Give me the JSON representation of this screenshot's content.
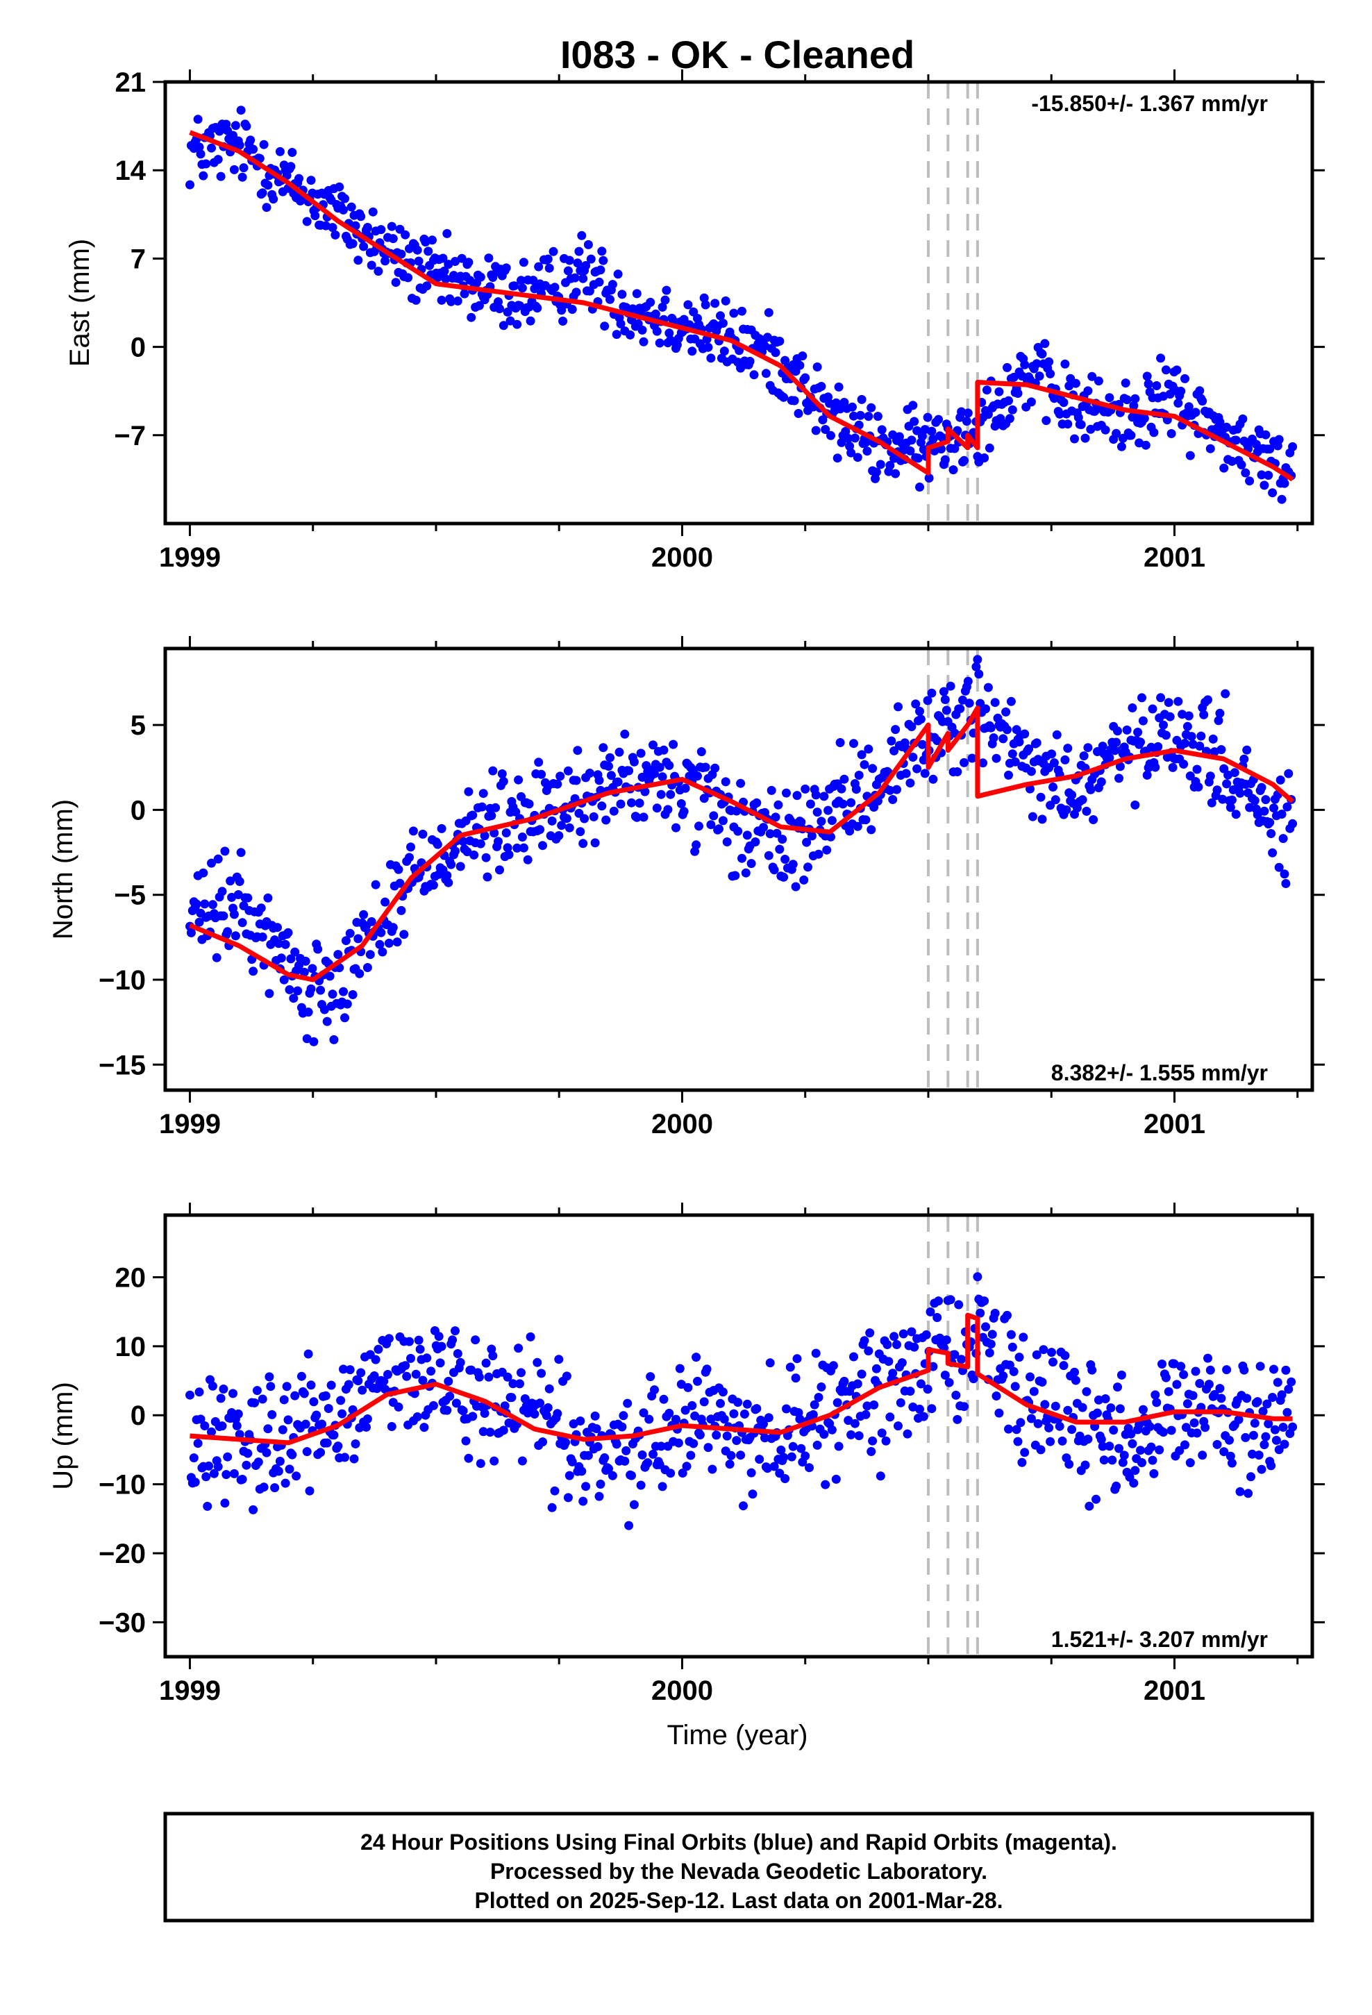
{
  "chart_data": {
    "type": "scatter",
    "title": "I083  - OK - Cleaned",
    "xlabel": "Time (year)",
    "xlim": [
      1998.95,
      2001.28
    ],
    "x_ticks": [
      1999,
      2000,
      2001
    ],
    "x_tick_labels": [
      "1999",
      "2000",
      "2001"
    ],
    "colors": {
      "data": "#0000ff",
      "model": "#ff0000",
      "steps": "#bdbdbd",
      "frame": "#000000"
    },
    "step_epochs": [
      2000.5,
      2000.54,
      2000.58,
      2000.6
    ],
    "panels": [
      {
        "name": "east",
        "ylabel": "East (mm)",
        "ylim": [
          -14,
          21
        ],
        "y_ticks": [
          21,
          14,
          7,
          0,
          -7
        ],
        "rate_label": "-15.850+/- 1.367 mm/yr",
        "rate_label_position": "top-right",
        "model_x": [
          1999.0,
          1999.1,
          1999.2,
          1999.3,
          1999.4,
          1999.5,
          1999.6,
          1999.7,
          1999.8,
          1999.9,
          2000.0,
          2000.1,
          2000.2,
          2000.3,
          2000.4,
          2000.5,
          2000.5,
          2000.54,
          2000.54,
          2000.58,
          2000.58,
          2000.6,
          2000.6,
          2000.7,
          2000.8,
          2000.9,
          2001.0,
          2001.1,
          2001.2,
          2001.24
        ],
        "model_y": [
          17.0,
          15.5,
          13.0,
          10.0,
          7.5,
          5.0,
          4.5,
          4.0,
          3.5,
          2.5,
          1.5,
          0.5,
          -1.5,
          -5.5,
          -7.5,
          -10.0,
          -8.0,
          -7.5,
          -6.5,
          -8.0,
          -7.0,
          -8.0,
          -2.8,
          -3.0,
          -4.0,
          -5.0,
          -5.5,
          -7.5,
          -9.5,
          -10.5
        ],
        "scatter": {
          "noise": 1.8,
          "anchors": [
            [
              1999.0,
              15.5
            ],
            [
              1999.1,
              16.0
            ],
            [
              1999.2,
              13.0
            ],
            [
              1999.3,
              10.5
            ],
            [
              1999.4,
              7.5
            ],
            [
              1999.5,
              5.5
            ],
            [
              1999.6,
              4.5
            ],
            [
              1999.7,
              4.0
            ],
            [
              1999.8,
              6.0
            ],
            [
              1999.9,
              3.0
            ],
            [
              2000.0,
              2.0
            ],
            [
              2000.1,
              0.5
            ],
            [
              2000.2,
              -1.0
            ],
            [
              2000.3,
              -5.5
            ],
            [
              2000.4,
              -8.0
            ],
            [
              2000.5,
              -8.0
            ],
            [
              2000.6,
              -6.0
            ],
            [
              2000.7,
              -2.0
            ],
            [
              2000.8,
              -5.0
            ],
            [
              2000.9,
              -5.5
            ],
            [
              2001.0,
              -4.0
            ],
            [
              2001.1,
              -7.0
            ],
            [
              2001.2,
              -9.5
            ],
            [
              2001.24,
              -9.5
            ]
          ]
        }
      },
      {
        "name": "north",
        "ylabel": "North (mm)",
        "ylim": [
          -16.5,
          9.5
        ],
        "y_ticks": [
          5,
          0,
          -5,
          -10,
          -15
        ],
        "rate_label": "8.382+/- 1.555 mm/yr",
        "rate_label_position": "bottom-right",
        "model_x": [
          1999.0,
          1999.1,
          1999.2,
          1999.25,
          1999.35,
          1999.45,
          1999.55,
          1999.7,
          1999.85,
          2000.0,
          2000.1,
          2000.2,
          2000.3,
          2000.4,
          2000.5,
          2000.5,
          2000.54,
          2000.54,
          2000.58,
          2000.6,
          2000.6,
          2000.7,
          2000.8,
          2000.9,
          2001.0,
          2001.1,
          2001.2,
          2001.24
        ],
        "model_y": [
          -6.8,
          -8.0,
          -9.7,
          -10.0,
          -8.0,
          -4.0,
          -1.5,
          -0.5,
          1.0,
          1.8,
          0.5,
          -1.0,
          -1.3,
          1.0,
          5.0,
          2.5,
          4.5,
          3.5,
          5.0,
          6.0,
          0.8,
          1.5,
          2.0,
          3.0,
          3.5,
          3.0,
          1.5,
          0.5
        ],
        "scatter": {
          "noise": 1.8,
          "anchors": [
            [
              1999.0,
              -6.5
            ],
            [
              1999.1,
              -5.5
            ],
            [
              1999.2,
              -9.0
            ],
            [
              1999.25,
              -11.0
            ],
            [
              1999.35,
              -8.0
            ],
            [
              1999.45,
              -4.0
            ],
            [
              1999.55,
              -1.5
            ],
            [
              1999.7,
              -0.5
            ],
            [
              1999.85,
              1.5
            ],
            [
              2000.0,
              1.5
            ],
            [
              2000.1,
              -1.0
            ],
            [
              2000.2,
              -2.0
            ],
            [
              2000.3,
              -0.5
            ],
            [
              2000.4,
              2.0
            ],
            [
              2000.5,
              4.5
            ],
            [
              2000.6,
              6.0
            ],
            [
              2000.7,
              2.5
            ],
            [
              2000.8,
              1.0
            ],
            [
              2000.9,
              3.5
            ],
            [
              2001.0,
              4.0
            ],
            [
              2001.1,
              3.0
            ],
            [
              2001.2,
              -1.0
            ],
            [
              2001.24,
              -1.0
            ]
          ]
        }
      },
      {
        "name": "up",
        "ylabel": "Up (mm)",
        "ylim": [
          -35,
          29
        ],
        "y_ticks": [
          20,
          10,
          0,
          -10,
          -20,
          -30
        ],
        "rate_label": "1.521+/- 3.207 mm/yr",
        "rate_label_position": "bottom-right",
        "model_x": [
          1999.0,
          1999.1,
          1999.2,
          1999.3,
          1999.4,
          1999.5,
          1999.6,
          1999.7,
          1999.8,
          1999.9,
          2000.0,
          2000.1,
          2000.2,
          2000.3,
          2000.4,
          2000.5,
          2000.5,
          2000.54,
          2000.54,
          2000.58,
          2000.58,
          2000.6,
          2000.6,
          2000.7,
          2000.8,
          2000.9,
          2001.0,
          2001.1,
          2001.2,
          2001.24
        ],
        "model_y": [
          -3.0,
          -3.5,
          -4.0,
          -1.5,
          3.0,
          4.5,
          2.0,
          -2.0,
          -3.5,
          -3.0,
          -1.5,
          -2.0,
          -2.5,
          0.0,
          4.0,
          6.5,
          9.5,
          9.0,
          7.5,
          7.0,
          14.5,
          14.0,
          6.0,
          1.5,
          -1.0,
          -1.0,
          0.5,
          0.5,
          -0.5,
          -0.5
        ],
        "scatter": {
          "noise": 5.5,
          "anchors": [
            [
              1999.0,
              -3.0
            ],
            [
              1999.1,
              -2.0
            ],
            [
              1999.2,
              -4.0
            ],
            [
              1999.3,
              0.0
            ],
            [
              1999.4,
              6.0
            ],
            [
              1999.5,
              6.0
            ],
            [
              1999.6,
              0.0
            ],
            [
              1999.7,
              1.0
            ],
            [
              1999.8,
              -6.0
            ],
            [
              1999.9,
              -5.0
            ],
            [
              2000.0,
              0.0
            ],
            [
              2000.1,
              -2.0
            ],
            [
              2000.2,
              -2.0
            ],
            [
              2000.3,
              0.0
            ],
            [
              2000.4,
              3.0
            ],
            [
              2000.5,
              8.0
            ],
            [
              2000.6,
              12.0
            ],
            [
              2000.7,
              3.0
            ],
            [
              2000.8,
              -2.0
            ],
            [
              2000.9,
              -3.0
            ],
            [
              2001.0,
              2.0
            ],
            [
              2001.1,
              -1.0
            ],
            [
              2001.2,
              -3.0
            ],
            [
              2001.24,
              2.0
            ]
          ]
        }
      }
    ]
  },
  "footer": {
    "line1": "24 Hour Positions Using Final Orbits (blue) and Rapid Orbits (magenta).",
    "line2": "Processed by the Nevada Geodetic Laboratory.",
    "line3": "Plotted on 2025-Sep-12. Last data on 2001-Mar-28."
  }
}
